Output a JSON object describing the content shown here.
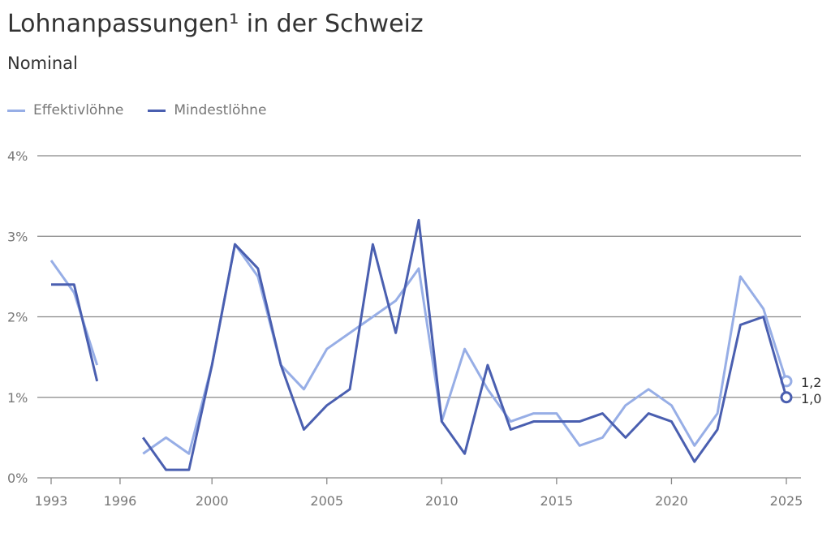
{
  "chart_data": {
    "type": "line",
    "title": "Lohnanpassungen¹ in der Schweiz",
    "subtitle": "Nominal",
    "xlabel": "",
    "ylabel": "",
    "x": [
      1993,
      1994,
      1995,
      1996,
      1997,
      1998,
      1999,
      2000,
      2001,
      2002,
      2003,
      2004,
      2005,
      2006,
      2007,
      2008,
      2009,
      2010,
      2011,
      2012,
      2013,
      2014,
      2015,
      2016,
      2017,
      2018,
      2019,
      2020,
      2021,
      2022,
      2023,
      2024,
      2025
    ],
    "xlim": [
      1993,
      2025
    ],
    "ylim": [
      0,
      4
    ],
    "x_ticks": [
      "1993",
      "1996",
      "2000",
      "2005",
      "2010",
      "2015",
      "2020",
      "2025"
    ],
    "y_ticks": [
      "0%",
      "1%",
      "2%",
      "3%",
      "4%"
    ],
    "grid": true,
    "legend_position": "top-left",
    "series": [
      {
        "name": "Effektivlöhne",
        "color": "#97aee6",
        "values": [
          2.7,
          2.3,
          1.4,
          null,
          0.3,
          0.5,
          0.3,
          1.4,
          2.9,
          2.5,
          1.4,
          1.1,
          1.6,
          1.8,
          2.0,
          2.2,
          2.6,
          0.7,
          1.6,
          1.1,
          0.7,
          0.8,
          0.8,
          0.4,
          0.5,
          0.9,
          1.1,
          0.9,
          0.4,
          0.8,
          2.5,
          2.1,
          1.2
        ],
        "end_label": "1,2"
      },
      {
        "name": "Mindestlöhne",
        "color": "#4a5fb0",
        "values": [
          2.4,
          2.4,
          1.2,
          null,
          0.5,
          0.1,
          0.1,
          1.4,
          2.9,
          2.6,
          1.4,
          0.6,
          0.9,
          1.1,
          2.9,
          1.8,
          3.2,
          0.7,
          0.3,
          1.4,
          0.6,
          0.7,
          0.7,
          0.7,
          0.8,
          0.5,
          0.8,
          0.7,
          0.2,
          0.6,
          1.9,
          2.0,
          1.0
        ],
        "end_label": "1,0"
      }
    ]
  }
}
